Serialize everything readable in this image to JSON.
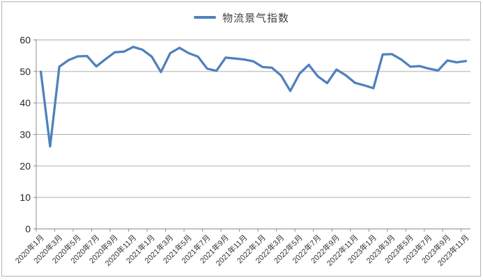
{
  "chart": {
    "legend_label": "物流景气指数",
    "colors": {
      "line": "#4f81bd",
      "gridline": "#acacac",
      "axis": "#8c8c8c",
      "tick": "#8c8c8c",
      "label_text": "#333333",
      "y_label_text": "#262626",
      "frame_border": "#b3b3b3"
    }
  },
  "chart_data": {
    "type": "line",
    "title": "",
    "xlabel": "",
    "ylabel": "",
    "legend_position": "top",
    "grid": true,
    "ylim": [
      0,
      60
    ],
    "y_ticks": [
      0,
      10,
      20,
      30,
      40,
      50,
      60
    ],
    "x_label_every": 2,
    "x": [
      "2020年1月",
      "2020年2月",
      "2020年3月",
      "2020年4月",
      "2020年5月",
      "2020年6月",
      "2020年7月",
      "2020年8月",
      "2020年9月",
      "2020年10月",
      "2020年11月",
      "2020年12月",
      "2021年1月",
      "2021年2月",
      "2021年3月",
      "2021年4月",
      "2021年5月",
      "2021年6月",
      "2021年7月",
      "2021年8月",
      "2021年9月",
      "2021年10月",
      "2021年11月",
      "2021年12月",
      "2022年1月",
      "2022年2月",
      "2022年3月",
      "2022年4月",
      "2022年5月",
      "2022年6月",
      "2022年7月",
      "2022年8月",
      "2022年9月",
      "2022年10月",
      "2022年11月",
      "2022年12月",
      "2023年1月",
      "2023年2月",
      "2023年3月",
      "2023年4月",
      "2023年5月",
      "2023年6月",
      "2023年7月",
      "2023年8月",
      "2023年9月",
      "2023年10月",
      "2023年11月"
    ],
    "series": [
      {
        "name": "物流景气指数",
        "values": [
          49.9,
          26.2,
          51.5,
          53.6,
          54.8,
          54.9,
          51.6,
          53.9,
          56.1,
          56.3,
          57.8,
          56.9,
          54.7,
          49.8,
          55.8,
          57.5,
          55.8,
          54.7,
          50.9,
          50.2,
          54.4,
          54.1,
          53.8,
          53.2,
          51.4,
          51.2,
          48.7,
          43.8,
          49.3,
          52.1,
          48.4,
          46.3,
          50.6,
          48.8,
          46.4,
          45.6,
          44.7,
          55.4,
          55.5,
          53.8,
          51.5,
          51.7,
          50.9,
          50.3,
          53.5,
          52.9,
          53.3
        ]
      }
    ]
  }
}
